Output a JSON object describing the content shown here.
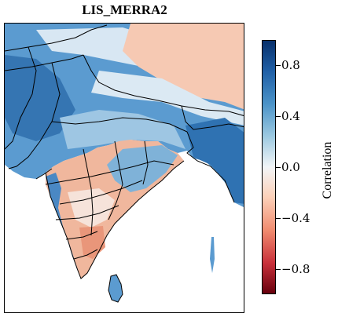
{
  "title": "LIS_MERRA2",
  "colorbar": {
    "label": "Correlation",
    "ticks": [
      "0.8",
      "0.4",
      "0.0",
      "−0.4",
      "−0.8"
    ],
    "tick_values": [
      0.8,
      0.4,
      0.0,
      -0.4,
      -0.8
    ],
    "range": [
      -1.0,
      1.0
    ],
    "colormap": "RdBu",
    "colors": {
      "high": "#08306b",
      "mid": "#f2f5f7",
      "low": "#67000d"
    }
  },
  "map": {
    "region": "South Asia",
    "colors": {
      "land_blue": "#5b9bd0",
      "land_light": "#a9cde6",
      "land_red": "#f2b49b",
      "border": "#000000"
    }
  }
}
